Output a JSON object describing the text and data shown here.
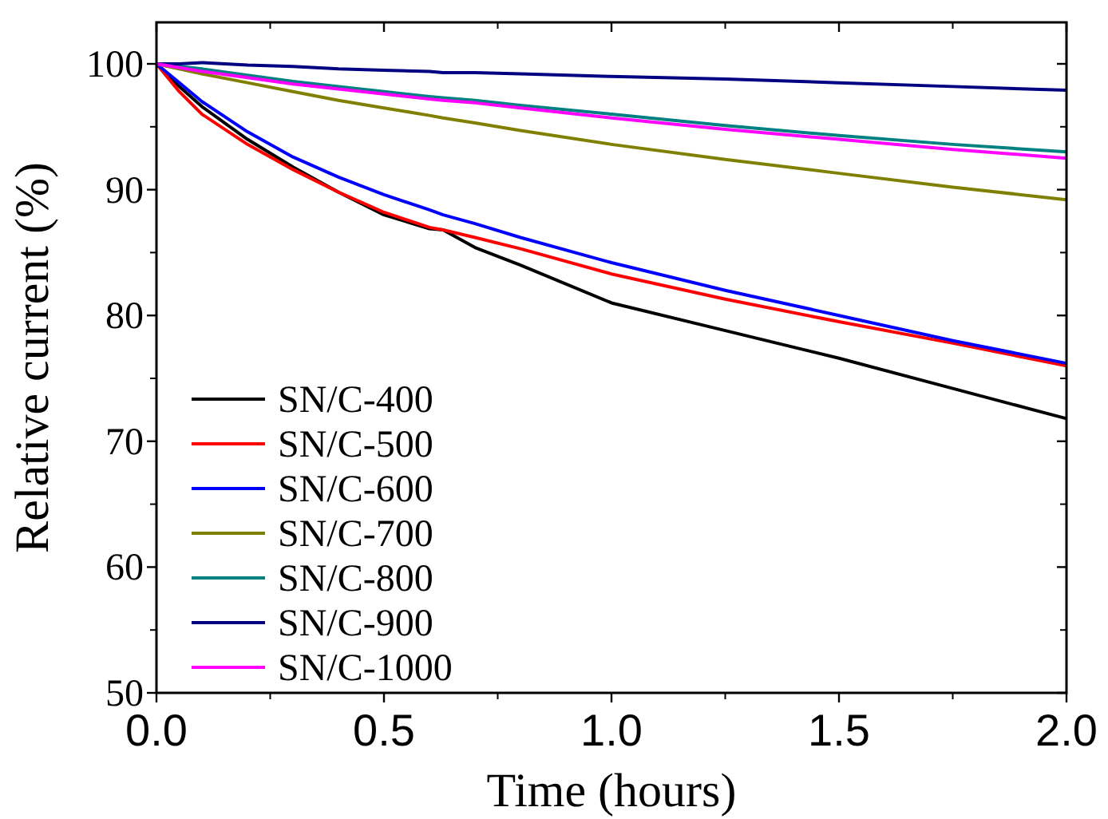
{
  "chart_data": {
    "type": "line",
    "xlabel": "Time (hours)",
    "ylabel": "Relative current (%)",
    "x": [
      0,
      0.05,
      0.1,
      0.2,
      0.3,
      0.4,
      0.5,
      0.6,
      0.63,
      0.7,
      0.8,
      1.0,
      1.25,
      1.5,
      1.75,
      2.0
    ],
    "xlim": [
      0,
      2.0
    ],
    "xticks": [
      {
        "value": 0,
        "label": "0.0"
      },
      0.5,
      {
        "value": 1,
        "label": "1.0"
      },
      1.5,
      {
        "value": 2,
        "label": "2.0"
      }
    ],
    "ylim": [
      50,
      103.3
    ],
    "yticks": [
      50,
      60,
      70,
      80,
      90,
      100
    ],
    "grid": false,
    "legend": "bottom left",
    "line_style": "solid",
    "marker": "none",
    "series": [
      {
        "name": "SN/C-400",
        "color": "#000000",
        "values": [
          100,
          98.2,
          96.6,
          94,
          91.8,
          89.8,
          88,
          86.9,
          86.8,
          85.4,
          84,
          81,
          78.8,
          76.6,
          74.2,
          71.8
        ]
      },
      {
        "name": "SN/C-500",
        "color": "#ff0000",
        "values": [
          100,
          97.8,
          96,
          93.6,
          91.6,
          89.8,
          88.2,
          87,
          86.8,
          86.2,
          85.3,
          83.3,
          81.3,
          79.5,
          77.8,
          76
        ]
      },
      {
        "name": "SN/C-600",
        "color": "#0000ff",
        "values": [
          100,
          98.5,
          97,
          94.6,
          92.6,
          91,
          89.6,
          88.4,
          88,
          87.3,
          86.2,
          84.2,
          82,
          80,
          78,
          76.2
        ]
      },
      {
        "name": "SN/C-700",
        "color": "#808000",
        "values": [
          100,
          99.6,
          99.2,
          98.5,
          97.8,
          97.1,
          96.5,
          95.9,
          95.7,
          95.3,
          94.7,
          93.6,
          92.4,
          91.3,
          90.2,
          89.2
        ]
      },
      {
        "name": "SN/C-800",
        "color": "#008080",
        "values": [
          100,
          99.8,
          99.6,
          99.1,
          98.6,
          98.2,
          97.8,
          97.4,
          97.3,
          97.1,
          96.7,
          96,
          95.1,
          94.3,
          93.6,
          93
        ]
      },
      {
        "name": "SN/C-900",
        "color": "#000080",
        "values": [
          100,
          100,
          100.1,
          99.9,
          99.8,
          99.6,
          99.5,
          99.4,
          99.3,
          99.3,
          99.2,
          99,
          98.8,
          98.5,
          98.2,
          97.9
        ]
      },
      {
        "name": "SN/C-1000",
        "color": "#ff00ff",
        "values": [
          100,
          99.7,
          99.4,
          98.9,
          98.4,
          98,
          97.6,
          97.2,
          97.1,
          96.9,
          96.5,
          95.7,
          94.8,
          94,
          93.2,
          92.5
        ]
      }
    ]
  }
}
